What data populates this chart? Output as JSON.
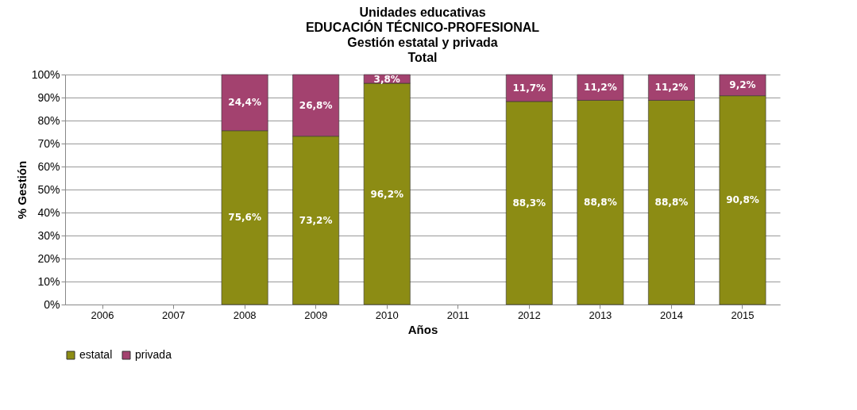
{
  "chart_data": {
    "type": "bar",
    "title": "Unidades educativas\nEDUCACIÓN TÉCNICO-PROFESIONAL\nGestión estatal y privada\nTotal",
    "xlabel": "Años",
    "ylabel": "% Gestión",
    "categories": [
      "2006",
      "2007",
      "2008",
      "2009",
      "2010",
      "2011",
      "2012",
      "2013",
      "2014",
      "2015"
    ],
    "series": [
      {
        "name": "estatal",
        "color": "#8c8c14",
        "values": [
          null,
          null,
          75.6,
          73.2,
          96.2,
          null,
          88.3,
          88.8,
          88.8,
          90.8
        ],
        "value_labels": [
          null,
          null,
          "75,6%",
          "73,2%",
          "96,2%",
          null,
          "88,3%",
          "88,8%",
          "88,8%",
          "90,8%"
        ]
      },
      {
        "name": "privada",
        "color": "#a3426f",
        "values": [
          null,
          null,
          24.4,
          26.8,
          3.8,
          null,
          11.7,
          11.2,
          11.2,
          9.2
        ],
        "value_labels": [
          null,
          null,
          "24,4%",
          "26,8%",
          "3,8%",
          null,
          "11,7%",
          "11,2%",
          "11,2%",
          "9,2%"
        ]
      }
    ],
    "stacked": true,
    "ylim": [
      0,
      100
    ],
    "yticks": [
      {
        "value": 0,
        "label": "0%"
      },
      {
        "value": 10,
        "label": "10%"
      },
      {
        "value": 20,
        "label": "20%"
      },
      {
        "value": 30,
        "label": "30%"
      },
      {
        "value": 40,
        "label": "40%"
      },
      {
        "value": 50,
        "label": "50%"
      },
      {
        "value": 60,
        "label": "60%"
      },
      {
        "value": 70,
        "label": "70%"
      },
      {
        "value": 80,
        "label": "80%"
      },
      {
        "value": 90,
        "label": "90%"
      },
      {
        "value": 100,
        "label": "100%"
      }
    ],
    "grid": "y",
    "legend": "bottom"
  }
}
